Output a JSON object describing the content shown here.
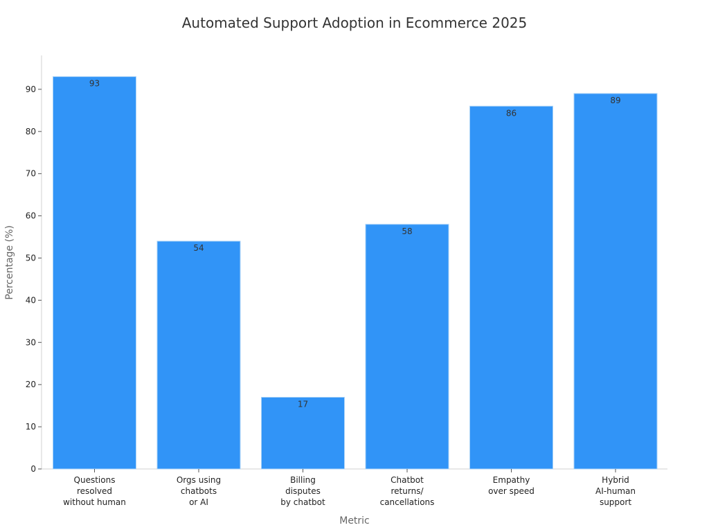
{
  "chart_data": {
    "type": "bar",
    "title": "Automated Support Adoption in Ecommerce 2025",
    "xlabel": "Metric",
    "ylabel": "Percentage (%)",
    "categories": [
      [
        "Questions",
        "resolved",
        "without human"
      ],
      [
        "Orgs using",
        "chatbots",
        "or AI"
      ],
      [
        "Billing",
        "disputes",
        "by chatbot"
      ],
      [
        "Chatbot",
        "returns/",
        "cancellations"
      ],
      [
        "Empathy",
        "over speed"
      ],
      [
        "Hybrid",
        "AI-human",
        "support"
      ]
    ],
    "values": [
      93,
      54,
      17,
      58,
      86,
      89
    ],
    "data_labels": [
      "93",
      "54",
      "17",
      "58",
      "86",
      "89"
    ],
    "ylim": [
      0,
      98
    ],
    "yticks": [
      0,
      10,
      20,
      30,
      40,
      50,
      60,
      70,
      80,
      90
    ],
    "grid": false,
    "bar_color": "#3194f7",
    "bar_edge_color": "#a9d2f7"
  }
}
